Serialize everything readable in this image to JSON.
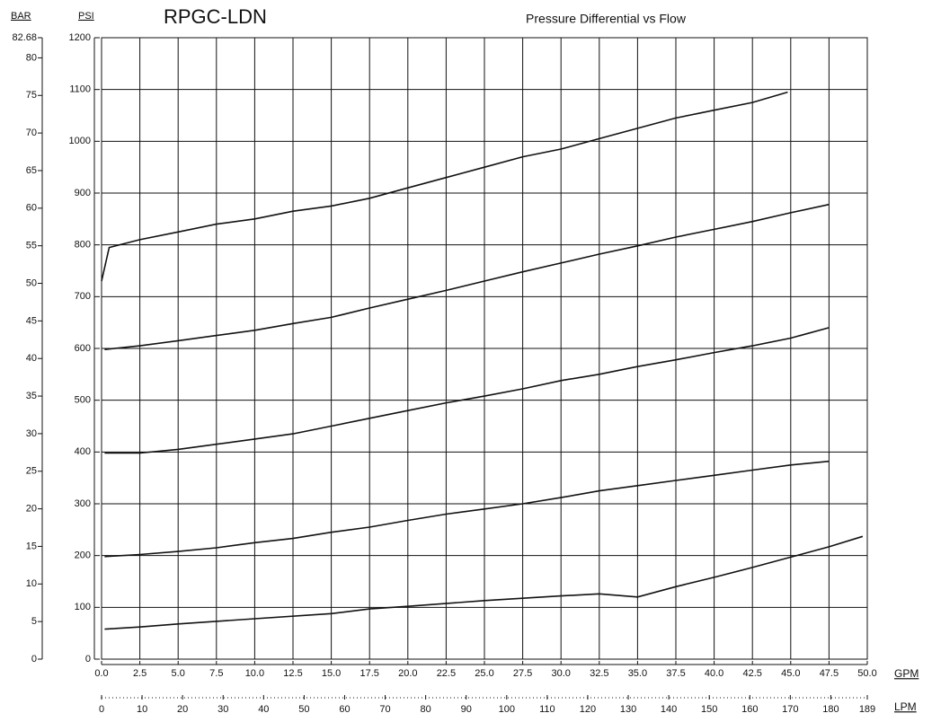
{
  "chart_data": {
    "type": "line",
    "title": "RPGC-LDN",
    "subtitle": "Pressure Differential vs Flow",
    "y_label": "PSI",
    "y2_label": "BAR",
    "x_label": "GPM",
    "x2_label": "LPM",
    "color": "#111111",
    "grid": true,
    "xlim": [
      0,
      50
    ],
    "xticks": [
      {
        "value": 0,
        "label": "0.0"
      },
      2.5,
      {
        "value": 5,
        "label": "5.0"
      },
      7.5,
      {
        "value": 10,
        "label": "10.0"
      },
      12.5,
      {
        "value": 15,
        "label": "15.0"
      },
      17.5,
      {
        "value": 20,
        "label": "20.0"
      },
      22.5,
      {
        "value": 25,
        "label": "25.0"
      },
      27.5,
      {
        "value": 30,
        "label": "30.0"
      },
      32.5,
      {
        "value": 35,
        "label": "35.0"
      },
      37.5,
      {
        "value": 40,
        "label": "40.0"
      },
      42.5,
      {
        "value": 45,
        "label": "45.0"
      },
      47.5,
      {
        "value": 50,
        "label": "50.0"
      }
    ],
    "x2lim": [
      0,
      189
    ],
    "x2ticks": [
      0,
      10,
      20,
      30,
      40,
      50,
      60,
      70,
      80,
      90,
      100,
      110,
      120,
      130,
      140,
      150,
      160,
      170,
      180,
      189
    ],
    "ylim": [
      0,
      1200
    ],
    "yticks": [
      0,
      100,
      200,
      300,
      400,
      500,
      600,
      700,
      800,
      900,
      1000,
      1100,
      1200
    ],
    "y2lim": [
      0,
      82.68
    ],
    "y2ticks": [
      0,
      5,
      10,
      15,
      20,
      25,
      30,
      35,
      40,
      45,
      50,
      55,
      60,
      65,
      70,
      75,
      80,
      82.68
    ],
    "series": [
      {
        "color": "#111111",
        "x": [
          0,
          0.5,
          2.5,
          5,
          7.5,
          10,
          12.5,
          15,
          17.5,
          20,
          22.5,
          25,
          27.5,
          30,
          32.5,
          35,
          37.5,
          40,
          42.5,
          44.8
        ],
        "values": [
          730,
          795,
          810,
          825,
          840,
          850,
          865,
          875,
          890,
          910,
          930,
          950,
          970,
          985,
          1005,
          1025,
          1045,
          1060,
          1075,
          1095
        ]
      },
      {
        "color": "#111111",
        "x": [
          0.2,
          2.5,
          5,
          7.5,
          10,
          12.5,
          15,
          17.5,
          20,
          22.5,
          25,
          27.5,
          30,
          32.5,
          35,
          37.5,
          40,
          42.5,
          45,
          47.5
        ],
        "values": [
          598,
          605,
          615,
          625,
          635,
          648,
          660,
          678,
          695,
          712,
          730,
          748,
          765,
          782,
          798,
          815,
          830,
          845,
          862,
          878
        ]
      },
      {
        "color": "#111111",
        "x": [
          0.2,
          2.5,
          5,
          7.5,
          10,
          12.5,
          15,
          17.5,
          20,
          22.5,
          25,
          27.5,
          30,
          32.5,
          35,
          37.5,
          40,
          42.5,
          45,
          47.5
        ],
        "values": [
          398,
          398,
          405,
          415,
          425,
          435,
          450,
          465,
          480,
          495,
          508,
          522,
          538,
          550,
          565,
          578,
          592,
          605,
          620,
          640
        ]
      },
      {
        "color": "#111111",
        "x": [
          0.2,
          2.5,
          5,
          7.5,
          10,
          12.5,
          15,
          17.5,
          20,
          22.5,
          25,
          27.5,
          30,
          32.5,
          35,
          37.5,
          40,
          42.5,
          45,
          47.5
        ],
        "values": [
          198,
          202,
          208,
          215,
          225,
          233,
          245,
          255,
          268,
          280,
          290,
          300,
          312,
          325,
          335,
          345,
          355,
          365,
          375,
          382
        ]
      },
      {
        "color": "#111111",
        "x": [
          0.2,
          2.5,
          5,
          10,
          15,
          17.5,
          20,
          25,
          30,
          32.5,
          35,
          37.5,
          40,
          42.5,
          45,
          47.5,
          49.7
        ],
        "values": [
          58,
          62,
          68,
          78,
          88,
          97,
          102,
          113,
          122,
          126,
          120,
          140,
          158,
          177,
          197,
          217,
          237
        ]
      }
    ]
  }
}
